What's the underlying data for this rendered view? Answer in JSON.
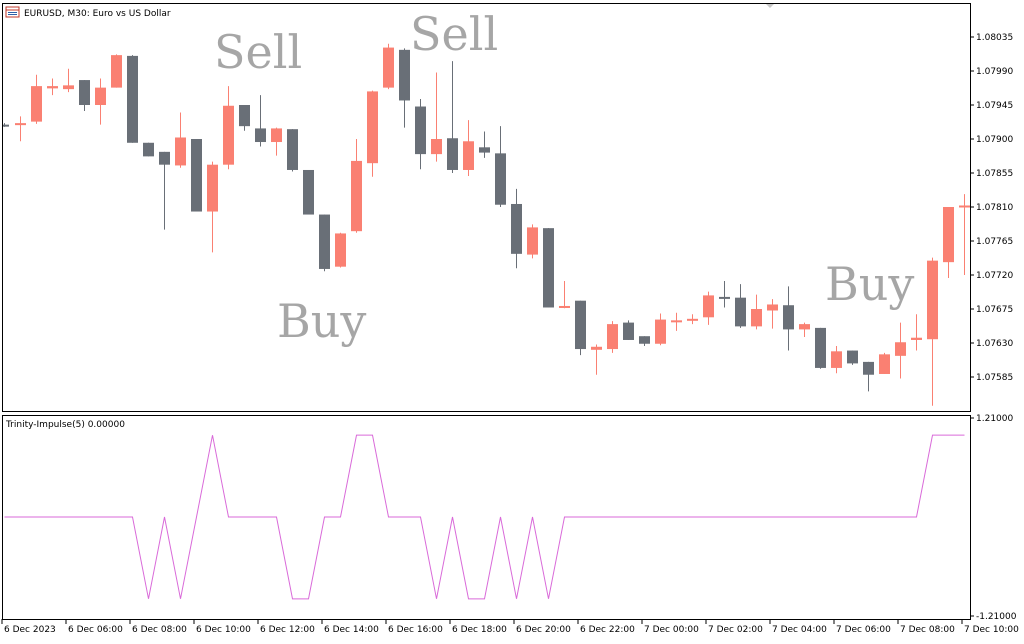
{
  "header": {
    "symbol_text": "EURUSD, M30:  Euro vs US Dollar",
    "indicator_text": "Trinity-Impulse(5) 0.00000"
  },
  "annotations": {
    "sell_1": "Sell",
    "sell_2": "Sell",
    "buy_1": "Buy",
    "buy_2": "Buy"
  },
  "colors": {
    "bull": "#fa8072",
    "bear": "#696f77",
    "indicator_line": "#d96ad9",
    "frame": "#000000",
    "background": "#ffffff",
    "annotation": "#a6a6a6"
  },
  "chart_data": [
    {
      "type": "candlestick",
      "name": "price",
      "ylim": [
        1.0754,
        1.0808
      ],
      "y_ticks": [
        "1.08035",
        "1.07990",
        "1.07945",
        "1.07900",
        "1.07855",
        "1.07810",
        "1.07765",
        "1.07720",
        "1.07675",
        "1.07630",
        "1.07585"
      ],
      "x_ticks": [
        "6 Dec 2023",
        "6 Dec 06:00",
        "6 Dec 08:00",
        "6 Dec 10:00",
        "6 Dec 12:00",
        "6 Dec 14:00",
        "6 Dec 16:00",
        "6 Dec 18:00",
        "6 Dec 20:00",
        "6 Dec 22:00",
        "7 Dec 00:00",
        "7 Dec 02:00",
        "7 Dec 04:00",
        "7 Dec 06:00",
        "7 Dec 08:00",
        "7 Dec 10:00"
      ],
      "candles": [
        {
          "o": 1.07919,
          "h": 1.07921,
          "l": 1.07916,
          "c": 1.07917
        },
        {
          "o": 1.0792,
          "h": 1.0793,
          "l": 1.07897,
          "c": 1.07921
        },
        {
          "o": 1.07923,
          "h": 1.07985,
          "l": 1.0792,
          "c": 1.0797
        },
        {
          "o": 1.07967,
          "h": 1.0798,
          "l": 1.07958,
          "c": 1.0797
        },
        {
          "o": 1.07966,
          "h": 1.07993,
          "l": 1.07962,
          "c": 1.07971
        },
        {
          "o": 1.07978,
          "h": 1.07978,
          "l": 1.07937,
          "c": 1.07945
        },
        {
          "o": 1.07945,
          "h": 1.0798,
          "l": 1.07919,
          "c": 1.07968
        },
        {
          "o": 1.07968,
          "h": 1.08012,
          "l": 1.07968,
          "c": 1.08011
        },
        {
          "o": 1.0801,
          "h": 1.08011,
          "l": 1.07895,
          "c": 1.07895
        },
        {
          "o": 1.07895,
          "h": 1.07895,
          "l": 1.07877,
          "c": 1.07877
        },
        {
          "o": 1.07883,
          "h": 1.07883,
          "l": 1.0778,
          "c": 1.07866
        },
        {
          "o": 1.07865,
          "h": 1.07935,
          "l": 1.07862,
          "c": 1.07902
        },
        {
          "o": 1.079,
          "h": 1.079,
          "l": 1.07804,
          "c": 1.07804
        },
        {
          "o": 1.07804,
          "h": 1.0787,
          "l": 1.0775,
          "c": 1.07866
        },
        {
          "o": 1.07866,
          "h": 1.0797,
          "l": 1.0786,
          "c": 1.07944
        },
        {
          "o": 1.07945,
          "h": 1.07945,
          "l": 1.07911,
          "c": 1.07917
        },
        {
          "o": 1.07914,
          "h": 1.07958,
          "l": 1.0789,
          "c": 1.07896
        },
        {
          "o": 1.07896,
          "h": 1.07915,
          "l": 1.07878,
          "c": 1.07914
        },
        {
          "o": 1.07913,
          "h": 1.07913,
          "l": 1.07857,
          "c": 1.07859
        },
        {
          "o": 1.07859,
          "h": 1.07859,
          "l": 1.078,
          "c": 1.078
        },
        {
          "o": 1.078,
          "h": 1.078,
          "l": 1.07725,
          "c": 1.07728
        },
        {
          "o": 1.07731,
          "h": 1.07776,
          "l": 1.0773,
          "c": 1.07775
        },
        {
          "o": 1.07778,
          "h": 1.079,
          "l": 1.07776,
          "c": 1.07871
        },
        {
          "o": 1.07868,
          "h": 1.07964,
          "l": 1.0785,
          "c": 1.07963
        },
        {
          "o": 1.07968,
          "h": 1.08026,
          "l": 1.07966,
          "c": 1.08021
        },
        {
          "o": 1.08018,
          "h": 1.0802,
          "l": 1.07915,
          "c": 1.07951
        },
        {
          "o": 1.07943,
          "h": 1.07953,
          "l": 1.0786,
          "c": 1.0788
        },
        {
          "o": 1.0788,
          "h": 1.07988,
          "l": 1.0787,
          "c": 1.079
        },
        {
          "o": 1.07901,
          "h": 1.08003,
          "l": 1.07855,
          "c": 1.07859
        },
        {
          "o": 1.07859,
          "h": 1.07925,
          "l": 1.07851,
          "c": 1.07897
        },
        {
          "o": 1.07889,
          "h": 1.0791,
          "l": 1.07875,
          "c": 1.07882
        },
        {
          "o": 1.07881,
          "h": 1.07917,
          "l": 1.0781,
          "c": 1.07813
        },
        {
          "o": 1.07814,
          "h": 1.07834,
          "l": 1.07729,
          "c": 1.07748
        },
        {
          "o": 1.07747,
          "h": 1.07787,
          "l": 1.07742,
          "c": 1.07783
        },
        {
          "o": 1.07782,
          "h": 1.07782,
          "l": 1.07677,
          "c": 1.07677
        },
        {
          "o": 1.07678,
          "h": 1.07712,
          "l": 1.07676,
          "c": 1.07679
        },
        {
          "o": 1.07686,
          "h": 1.07686,
          "l": 1.07614,
          "c": 1.07622
        },
        {
          "o": 1.07621,
          "h": 1.07628,
          "l": 1.07588,
          "c": 1.07625
        },
        {
          "o": 1.07622,
          "h": 1.07659,
          "l": 1.07617,
          "c": 1.07655
        },
        {
          "o": 1.07657,
          "h": 1.0766,
          "l": 1.07634,
          "c": 1.07634
        },
        {
          "o": 1.07639,
          "h": 1.07639,
          "l": 1.07626,
          "c": 1.07629
        },
        {
          "o": 1.07629,
          "h": 1.07669,
          "l": 1.07627,
          "c": 1.07661
        },
        {
          "o": 1.0766,
          "h": 1.0767,
          "l": 1.07646,
          "c": 1.0766
        },
        {
          "o": 1.07661,
          "h": 1.07668,
          "l": 1.07655,
          "c": 1.07662
        },
        {
          "o": 1.07664,
          "h": 1.07698,
          "l": 1.07654,
          "c": 1.07693
        },
        {
          "o": 1.07691,
          "h": 1.07712,
          "l": 1.07677,
          "c": 1.07689
        },
        {
          "o": 1.0769,
          "h": 1.07708,
          "l": 1.0765,
          "c": 1.07652
        },
        {
          "o": 1.07652,
          "h": 1.07694,
          "l": 1.07648,
          "c": 1.07675
        },
        {
          "o": 1.07673,
          "h": 1.07688,
          "l": 1.07649,
          "c": 1.07681
        },
        {
          "o": 1.0768,
          "h": 1.07705,
          "l": 1.0762,
          "c": 1.07648
        },
        {
          "o": 1.07648,
          "h": 1.07657,
          "l": 1.07638,
          "c": 1.07655
        },
        {
          "o": 1.0765,
          "h": 1.0765,
          "l": 1.07596,
          "c": 1.07597
        },
        {
          "o": 1.07597,
          "h": 1.07626,
          "l": 1.0759,
          "c": 1.07619
        },
        {
          "o": 1.0762,
          "h": 1.0762,
          "l": 1.07601,
          "c": 1.07603
        },
        {
          "o": 1.07605,
          "h": 1.07605,
          "l": 1.07566,
          "c": 1.07588
        },
        {
          "o": 1.07589,
          "h": 1.07617,
          "l": 1.07589,
          "c": 1.07615
        },
        {
          "o": 1.07613,
          "h": 1.07657,
          "l": 1.07583,
          "c": 1.07631
        },
        {
          "o": 1.07634,
          "h": 1.07668,
          "l": 1.0762,
          "c": 1.07637
        },
        {
          "o": 1.07635,
          "h": 1.07743,
          "l": 1.07547,
          "c": 1.07739
        },
        {
          "o": 1.07737,
          "h": 1.0781,
          "l": 1.07716,
          "c": 1.0781
        },
        {
          "o": 1.0781,
          "h": 1.07827,
          "l": 1.0772,
          "c": 1.07812
        }
      ]
    },
    {
      "type": "line",
      "name": "Trinity-Impulse(5)",
      "ylim": [
        -1.21,
        1.21
      ],
      "y_ticks": [
        "1.21000",
        "-1.21000"
      ],
      "values": [
        0,
        0,
        0,
        0,
        0,
        0,
        0,
        0,
        0,
        -1,
        0,
        -1,
        0,
        1,
        0,
        0,
        0,
        0,
        -1,
        -1,
        0,
        0,
        1,
        1,
        0,
        0,
        0,
        -1,
        0,
        -1,
        -1,
        0,
        -1,
        0,
        -1,
        0,
        0,
        0,
        0,
        0,
        0,
        0,
        0,
        0,
        0,
        0,
        0,
        0,
        0,
        0,
        0,
        0,
        0,
        0,
        0,
        0,
        0,
        0,
        1,
        1,
        1
      ]
    }
  ]
}
